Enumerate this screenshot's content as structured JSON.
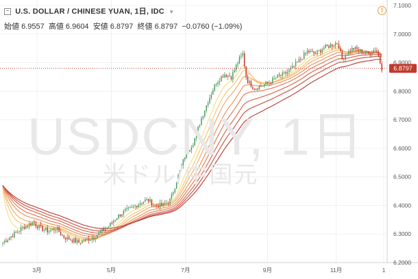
{
  "header": {
    "symbol": "U.S. DOLLAR / CHINESE YUAN, 1日, IDC",
    "collapse_icon": "minus-box-icon",
    "dropdown_icon": "chevron-down-icon",
    "warning_icon": "warning-circle-icon",
    "open_label": "始値",
    "open_value": "6.9557",
    "high_label": "高値",
    "high_value": "6.9604",
    "low_label": "安値",
    "low_value": "6.8797",
    "close_label": "終値",
    "close_value": "6.8797",
    "change": "−0.0760 (−1.09%)"
  },
  "watermark": {
    "ticker": "USDCNY, 1日",
    "name": "米ドル/中国元"
  },
  "colors": {
    "up": "#4a9a5a",
    "down": "#c0392b",
    "price_line": "#c0392b",
    "ribbon": [
      "#f7e08a",
      "#f5c779",
      "#f2ad6c",
      "#ec9460",
      "#e47d57",
      "#d96850",
      "#cc5548",
      "#bb4541"
    ]
  },
  "chart_data": {
    "type": "candlestick",
    "title": "U.S. DOLLAR / CHINESE YUAN, 1日, IDC",
    "last_price": "6.8797",
    "y_ticks": [
      "7.1000",
      "7.0000",
      "6.9000",
      "6.8000",
      "6.7000",
      "6.6000",
      "6.5000",
      "6.4000",
      "6.3000",
      "6.2000"
    ],
    "ylim": [
      6.2,
      7.1
    ],
    "x_ticks": [
      {
        "label": "3月",
        "t": 0.09
      },
      {
        "label": "5月",
        "t": 0.285
      },
      {
        "label": "7月",
        "t": 0.48
      },
      {
        "label": "9月",
        "t": 0.695
      },
      {
        "label": "11月",
        "t": 0.875
      },
      {
        "label": "1",
        "t": 1.0
      }
    ],
    "close_path": [
      [
        0.0,
        6.27
      ],
      [
        0.02,
        6.29
      ],
      [
        0.04,
        6.31
      ],
      [
        0.06,
        6.33
      ],
      [
        0.08,
        6.34
      ],
      [
        0.1,
        6.32
      ],
      [
        0.12,
        6.31
      ],
      [
        0.14,
        6.32
      ],
      [
        0.16,
        6.29
      ],
      [
        0.18,
        6.28
      ],
      [
        0.2,
        6.27
      ],
      [
        0.22,
        6.28
      ],
      [
        0.24,
        6.29
      ],
      [
        0.26,
        6.31
      ],
      [
        0.28,
        6.33
      ],
      [
        0.3,
        6.36
      ],
      [
        0.32,
        6.38
      ],
      [
        0.34,
        6.39
      ],
      [
        0.36,
        6.41
      ],
      [
        0.38,
        6.42
      ],
      [
        0.4,
        6.4
      ],
      [
        0.42,
        6.4
      ],
      [
        0.44,
        6.42
      ],
      [
        0.46,
        6.5
      ],
      [
        0.48,
        6.58
      ],
      [
        0.5,
        6.62
      ],
      [
        0.52,
        6.7
      ],
      [
        0.54,
        6.77
      ],
      [
        0.56,
        6.83
      ],
      [
        0.58,
        6.86
      ],
      [
        0.6,
        6.85
      ],
      [
        0.62,
        6.91
      ],
      [
        0.63,
        6.93
      ],
      [
        0.64,
        6.84
      ],
      [
        0.66,
        6.81
      ],
      [
        0.68,
        6.82
      ],
      [
        0.7,
        6.83
      ],
      [
        0.72,
        6.85
      ],
      [
        0.74,
        6.86
      ],
      [
        0.76,
        6.88
      ],
      [
        0.78,
        6.91
      ],
      [
        0.8,
        6.94
      ],
      [
        0.82,
        6.93
      ],
      [
        0.84,
        6.95
      ],
      [
        0.86,
        6.96
      ],
      [
        0.88,
        6.97
      ],
      [
        0.89,
        6.91
      ],
      [
        0.9,
        6.93
      ],
      [
        0.92,
        6.95
      ],
      [
        0.94,
        6.94
      ],
      [
        0.96,
        6.93
      ],
      [
        0.98,
        6.95
      ],
      [
        0.995,
        6.88
      ]
    ]
  }
}
